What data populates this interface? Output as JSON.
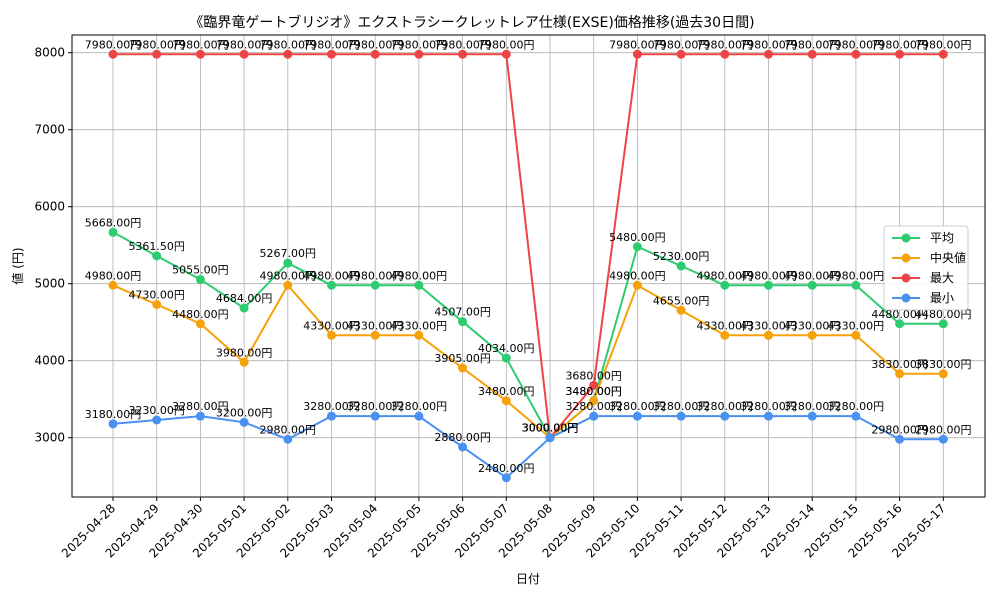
{
  "chart_data": {
    "type": "line",
    "title": "《臨界竜ゲートブリジオ》エクストラシークレットレア仕様(EXSE)価格推移(過去30日間)",
    "xlabel": "日付",
    "ylabel": "値 (円)",
    "ylim": [
      2230,
      8230
    ],
    "yticks": [
      3000,
      4000,
      5000,
      6000,
      7000,
      8000
    ],
    "grid": true,
    "legend_position": "center-right",
    "categories": [
      "2025-04-28",
      "2025-04-29",
      "2025-04-30",
      "2025-05-01",
      "2025-05-02",
      "2025-05-03",
      "2025-05-04",
      "2025-05-05",
      "2025-05-06",
      "2025-05-07",
      "2025-05-08",
      "2025-05-09",
      "2025-05-10",
      "2025-05-11",
      "2025-05-12",
      "2025-05-13",
      "2025-05-14",
      "2025-05-15",
      "2025-05-16",
      "2025-05-17"
    ],
    "series": [
      {
        "name": "平均",
        "color": "#2ecc71",
        "values": [
          5668,
          5361.5,
          5055,
          4684,
          5267,
          4980,
          4980,
          4980,
          4507,
          4034,
          3000,
          3480,
          5480,
          5230,
          4980,
          4980,
          4980,
          4980,
          4480,
          4480
        ],
        "labels": [
          "5668.00円",
          "5361.50円",
          "5055.00円",
          "4684.00円",
          "5267.00円",
          "4980.00円",
          "4980.00円",
          "4980.00円",
          "4507.00円",
          "4034.00円",
          "3000.00円",
          "3480.00円",
          "5480.00円",
          "5230.00円",
          "4980.00円",
          "4980.00円",
          "4980.00円",
          "4980.00円",
          "4480.00円",
          "4480.00円"
        ]
      },
      {
        "name": "中央値",
        "color": "#f5a20a",
        "values": [
          4980,
          4730,
          4480,
          3980,
          4980,
          4330,
          4330,
          4330,
          3905,
          3480,
          3000,
          3480,
          4980,
          4655,
          4330,
          4330,
          4330,
          4330,
          3830,
          3830
        ],
        "labels": [
          "4980.00円",
          "4730.00円",
          "4480.00円",
          "3980.00円",
          "4980.00円",
          "4330.00円",
          "4330.00円",
          "4330.00円",
          "3905.00円",
          "3480.00円",
          "3000.00円",
          "3480.00円",
          "4980.00円",
          "4655.00円",
          "4330.00円",
          "4330.00円",
          "4330.00円",
          "4330.00円",
          "3830.00円",
          "3830.00円"
        ]
      },
      {
        "name": "最大",
        "color": "#ef4444",
        "values": [
          7980,
          7980,
          7980,
          7980,
          7980,
          7980,
          7980,
          7980,
          7980,
          7980,
          3000,
          3680,
          7980,
          7980,
          7980,
          7980,
          7980,
          7980,
          7980,
          7980
        ],
        "labels": [
          "7980.00円",
          "7980.00円",
          "7980.00円",
          "7980.00円",
          "7980.00円",
          "7980.00円",
          "7980.00円",
          "7980.00円",
          "7980.00円",
          "7980.00円",
          "3000.00円",
          "3680.00円",
          "7980.00円",
          "7980.00円",
          "7980.00円",
          "7980.00円",
          "7980.00円",
          "7980.00円",
          "7980.00円",
          "7980.00円"
        ]
      },
      {
        "name": "最小",
        "color": "#4a90f0",
        "values": [
          3180,
          3230,
          3280,
          3200,
          2980,
          3280,
          3280,
          3280,
          2880,
          2480,
          3000,
          3280,
          3280,
          3280,
          3280,
          3280,
          3280,
          3280,
          2980,
          2980
        ],
        "labels": [
          "3180.00円",
          "3230.00円",
          "3280.00円",
          "3200.00円",
          "2980.00円",
          "3280.00円",
          "3280.00円",
          "3280.00円",
          "2880.00円",
          "2480.00円",
          "3000.00円",
          "3280.00円",
          "3280.00円",
          "3280.00円",
          "3280.00円",
          "3280.00円",
          "3280.00円",
          "3280.00円",
          "2980.00円",
          "2980.00円"
        ]
      }
    ]
  }
}
